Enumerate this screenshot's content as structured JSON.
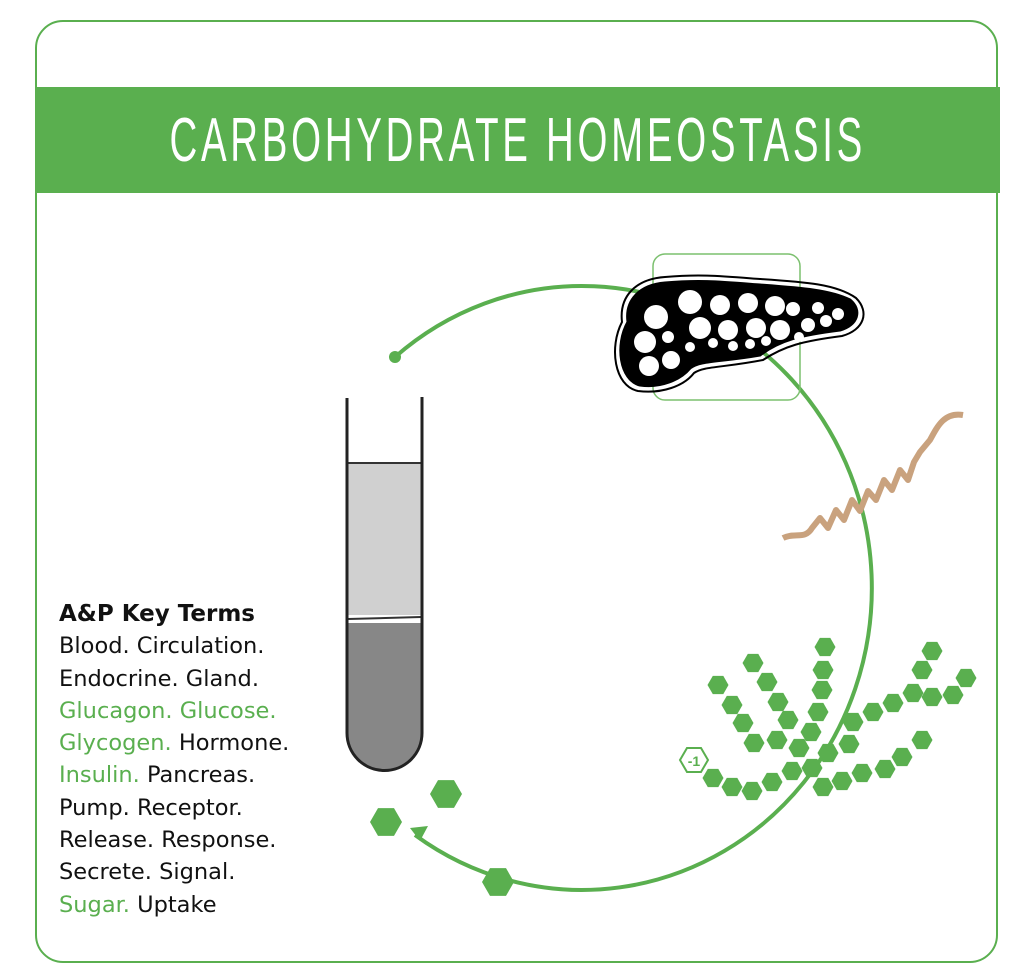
{
  "title": "CARBOHYDRATE HOMEOSTASIS",
  "colors": {
    "accent": "#5aaf4f",
    "tube_plasma": "#d0d0d0",
    "tube_cells": "#878787",
    "helix": "#c9a27e"
  },
  "icons": [
    "pancreas-icon",
    "test-tube-icon",
    "insulin-helix-icon",
    "glycogen-chain-icon",
    "glucose-hexagon-icon"
  ],
  "glycogen_label": "-1",
  "key_terms": {
    "heading": "A&P Key Terms",
    "lines": [
      [
        {
          "t": "Blood.",
          "hl": false
        },
        {
          "t": " Circulation.",
          "hl": false
        }
      ],
      [
        {
          "t": "Endocrine.",
          "hl": false
        },
        {
          "t": " Gland.",
          "hl": false
        }
      ],
      [
        {
          "t": "Glucagon.",
          "hl": true
        },
        {
          "t": " Glucose.",
          "hl": true
        }
      ],
      [
        {
          "t": "Glycogen.",
          "hl": true
        },
        {
          "t": " Hormone.",
          "hl": false
        }
      ],
      [
        {
          "t": "Insulin.",
          "hl": true
        },
        {
          "t": " Pancreas.",
          "hl": false
        }
      ],
      [
        {
          "t": "Pump.",
          "hl": false
        },
        {
          "t": " Receptor.",
          "hl": false
        }
      ],
      [
        {
          "t": "Release.",
          "hl": false
        },
        {
          "t": " Response.",
          "hl": false
        }
      ],
      [
        {
          "t": "Secrete.",
          "hl": false
        },
        {
          "t": " Signal.",
          "hl": false
        }
      ],
      [
        {
          "t": "Sugar.",
          "hl": true
        },
        {
          "t": " Uptake",
          "hl": false
        }
      ]
    ]
  }
}
